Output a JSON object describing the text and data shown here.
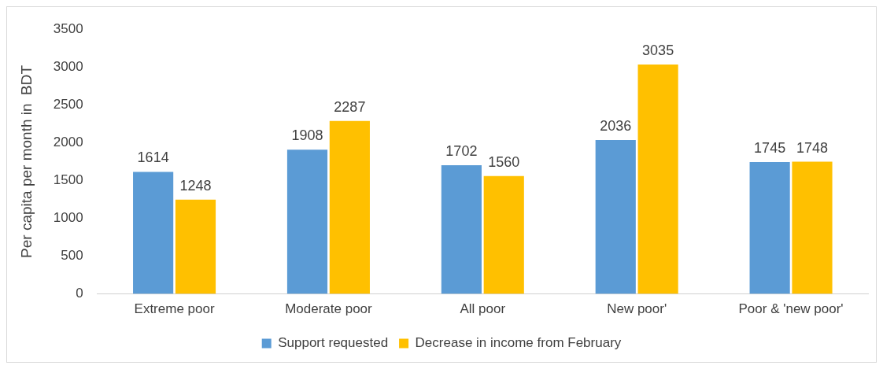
{
  "chart_data": {
    "type": "bar",
    "ylabel": "Per capita per month in  BDT",
    "categories": [
      "Extreme poor",
      "Moderate poor",
      "All poor",
      "New poor'",
      "Poor & 'new poor'"
    ],
    "series": [
      {
        "name": "Support requested",
        "color": "#5b9bd5",
        "values": [
          1614,
          1908,
          1702,
          2036,
          1745
        ]
      },
      {
        "name": "Decrease in income from February",
        "color": "#ffc000",
        "values": [
          1248,
          2287,
          1560,
          3035,
          1748
        ]
      }
    ],
    "ylim": [
      0,
      3500
    ],
    "yticks": [
      0,
      500,
      1000,
      1500,
      2000,
      2500,
      3000,
      3500
    ],
    "grid": false,
    "legend": "bottom",
    "data_labels": true
  }
}
